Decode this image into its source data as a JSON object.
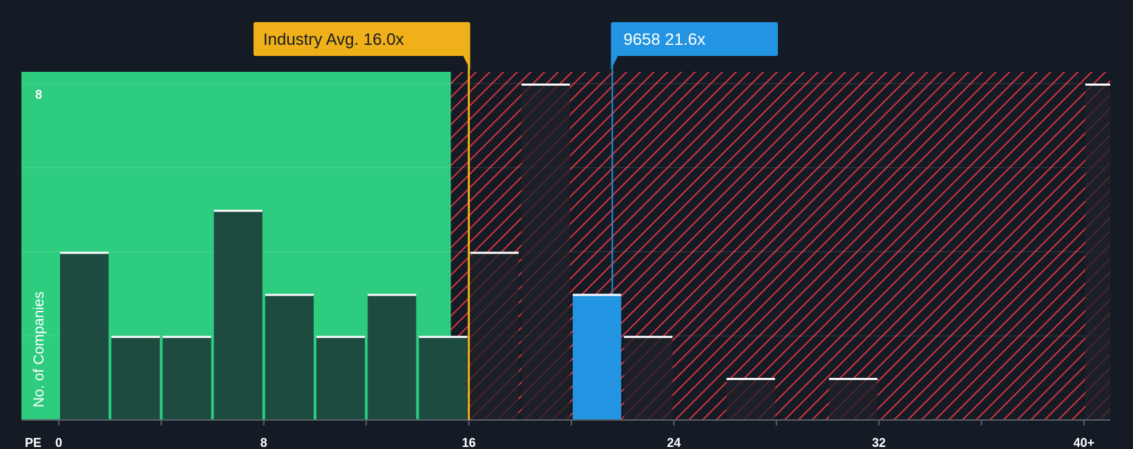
{
  "chart_data": {
    "type": "bar",
    "xlabel": "PE",
    "ylabel": "No. of Companies",
    "x_ticks": [
      "0",
      "8",
      "16",
      "24",
      "32",
      "40+"
    ],
    "y_ticks": [
      "8"
    ],
    "ylim": [
      0,
      8
    ],
    "bin_width": 2,
    "bins": [
      {
        "x_start": 0,
        "count": 4
      },
      {
        "x_start": 2,
        "count": 2
      },
      {
        "x_start": 4,
        "count": 2
      },
      {
        "x_start": 6,
        "count": 5
      },
      {
        "x_start": 8,
        "count": 3
      },
      {
        "x_start": 10,
        "count": 2
      },
      {
        "x_start": 12,
        "count": 3
      },
      {
        "x_start": 14,
        "count": 2
      },
      {
        "x_start": 16,
        "count": 4
      },
      {
        "x_start": 18,
        "count": 8
      },
      {
        "x_start": 20,
        "count": 3,
        "highlight": true
      },
      {
        "x_start": 22,
        "count": 2
      },
      {
        "x_start": 24,
        "count": 0
      },
      {
        "x_start": 26,
        "count": 1
      },
      {
        "x_start": 28,
        "count": 0
      },
      {
        "x_start": 30,
        "count": 1
      },
      {
        "x_start": 32,
        "count": 0
      },
      {
        "x_start": 34,
        "count": 0
      },
      {
        "x_start": 36,
        "count": 0
      },
      {
        "x_start": 38,
        "count": 0
      },
      {
        "x_start": 40,
        "count": 8
      }
    ],
    "industry_avg": {
      "label": "Industry Avg. 16.0x",
      "value": 16.0
    },
    "company": {
      "label": "9658 21.6x",
      "value": 21.6
    },
    "colors": {
      "background": "#151b24",
      "undervalued": "#2ecc7f",
      "bar_dark": "#1d4b3f",
      "bar_hatched": "#1f2229",
      "highlight": "#2394e1",
      "hatch": "#d3343f",
      "industry": "#efb019",
      "company": "#2394e1",
      "bar_top": "#ffffff",
      "axis": "#5a606a"
    }
  }
}
